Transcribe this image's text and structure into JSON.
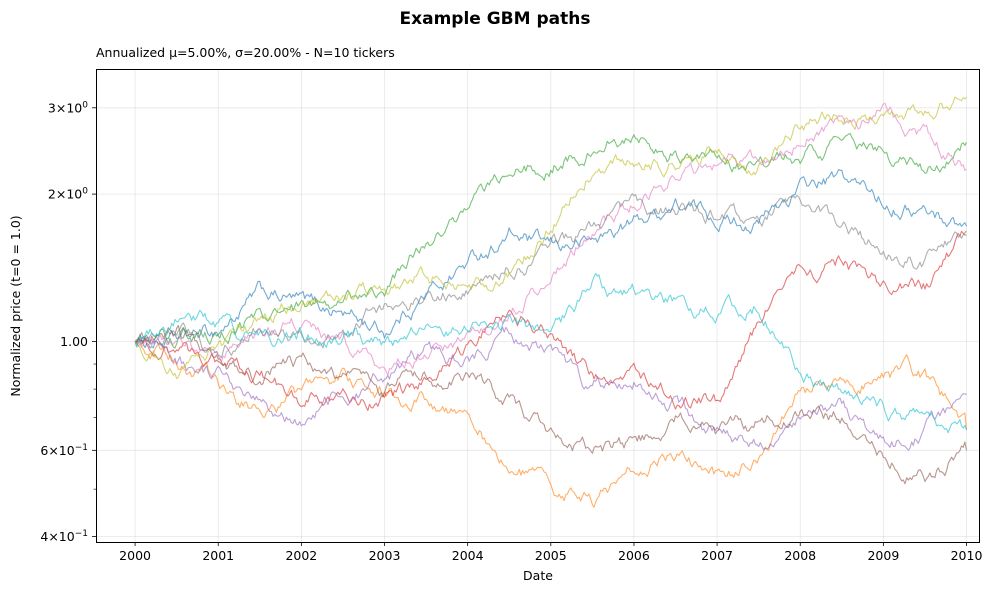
{
  "chart_data": {
    "type": "line",
    "title": "Example GBM paths",
    "subtitle": "Annualized μ=5.00%, σ=20.00%  -  N=10 tickers",
    "xlabel": "Date",
    "ylabel": "Normalized price (t=0 = 1.0)",
    "yscale": "log",
    "xlim": [
      1999.53,
      2010.15
    ],
    "ylim": [
      0.39,
      3.6
    ],
    "grid": true,
    "x_ticks": [
      {
        "value": 2000,
        "label": "2000"
      },
      {
        "value": 2001,
        "label": "2001"
      },
      {
        "value": 2002,
        "label": "2002"
      },
      {
        "value": 2003,
        "label": "2003"
      },
      {
        "value": 2004,
        "label": "2004"
      },
      {
        "value": 2005,
        "label": "2005"
      },
      {
        "value": 2006,
        "label": "2006"
      },
      {
        "value": 2007,
        "label": "2007"
      },
      {
        "value": 2008,
        "label": "2008"
      },
      {
        "value": 2009,
        "label": "2009"
      },
      {
        "value": 2010,
        "label": "2010"
      }
    ],
    "y_ticks": [
      {
        "value": 3.0,
        "base": "3",
        "exp": "0"
      },
      {
        "value": 2.0,
        "base": "2",
        "exp": "0"
      },
      {
        "value": 1.0,
        "text": "1.00"
      },
      {
        "value": 0.6,
        "base": "6",
        "exp": "−1"
      },
      {
        "value": 0.4,
        "base": "4",
        "exp": "−1"
      }
    ],
    "y_minor_ticks": [
      0.5,
      0.7,
      0.8,
      0.9
    ],
    "x": [
      2000.0,
      2000.5,
      2001.0,
      2001.5,
      2002.0,
      2002.5,
      2003.0,
      2003.5,
      2004.0,
      2004.5,
      2005.0,
      2005.5,
      2006.0,
      2006.5,
      2007.0,
      2007.5,
      2008.0,
      2008.5,
      2009.0,
      2009.5,
      2010.0
    ],
    "series": [
      {
        "color": "#1f77b4",
        "values": [
          1.0,
          1.0,
          1.05,
          1.25,
          1.2,
          1.15,
          1.05,
          1.25,
          1.45,
          1.65,
          1.55,
          1.6,
          1.75,
          1.9,
          1.8,
          1.75,
          2.05,
          2.15,
          1.95,
          1.85,
          1.72
        ]
      },
      {
        "color": "#ff7f0e",
        "values": [
          1.0,
          0.92,
          0.8,
          0.72,
          0.78,
          0.85,
          0.78,
          0.76,
          0.72,
          0.55,
          0.5,
          0.48,
          0.55,
          0.6,
          0.53,
          0.56,
          0.8,
          0.8,
          0.87,
          0.85,
          0.66
        ]
      },
      {
        "color": "#2ca02c",
        "values": [
          1.0,
          1.02,
          1.0,
          1.1,
          1.15,
          1.2,
          1.3,
          1.6,
          1.9,
          2.2,
          2.3,
          2.5,
          2.6,
          2.4,
          2.3,
          2.3,
          2.4,
          2.5,
          2.45,
          2.2,
          2.55
        ]
      },
      {
        "color": "#d62728",
        "values": [
          1.0,
          0.95,
          0.9,
          0.85,
          0.78,
          0.76,
          0.76,
          0.82,
          0.95,
          1.2,
          1.05,
          0.85,
          0.85,
          0.78,
          0.75,
          1.1,
          1.35,
          1.45,
          1.3,
          1.3,
          1.65
        ]
      },
      {
        "color": "#9467bd",
        "values": [
          1.0,
          0.9,
          0.85,
          0.75,
          0.7,
          0.78,
          0.85,
          0.95,
          0.9,
          1.05,
          0.95,
          0.8,
          0.85,
          0.75,
          0.65,
          0.6,
          0.7,
          0.75,
          0.62,
          0.66,
          0.78
        ]
      },
      {
        "color": "#8c564b",
        "values": [
          1.0,
          1.05,
          0.95,
          0.85,
          0.9,
          0.85,
          0.8,
          0.85,
          0.85,
          0.75,
          0.65,
          0.6,
          0.62,
          0.7,
          0.65,
          0.68,
          0.72,
          0.7,
          0.58,
          0.53,
          0.6
        ]
      },
      {
        "color": "#e377c2",
        "values": [
          1.0,
          0.98,
          0.95,
          1.05,
          1.1,
          1.0,
          0.9,
          0.95,
          1.0,
          1.1,
          1.4,
          1.7,
          1.9,
          2.2,
          2.3,
          2.3,
          2.6,
          2.8,
          2.95,
          2.6,
          2.25
        ]
      },
      {
        "color": "#7f7f7f",
        "values": [
          1.0,
          1.05,
          0.95,
          1.05,
          1.0,
          1.05,
          1.15,
          1.25,
          1.25,
          1.4,
          1.55,
          1.7,
          1.85,
          1.9,
          1.8,
          1.75,
          1.95,
          1.75,
          1.5,
          1.45,
          1.68
        ]
      },
      {
        "color": "#bcbd22",
        "values": [
          1.0,
          0.88,
          0.95,
          1.1,
          1.2,
          1.25,
          1.25,
          1.35,
          1.3,
          1.35,
          1.7,
          2.3,
          2.4,
          2.3,
          2.45,
          2.3,
          2.7,
          2.9,
          2.9,
          3.0,
          3.15
        ]
      },
      {
        "color": "#17becf",
        "values": [
          1.0,
          1.1,
          1.08,
          1.0,
          1.05,
          1.05,
          0.98,
          1.05,
          1.1,
          1.1,
          1.0,
          1.3,
          1.25,
          1.2,
          1.15,
          1.2,
          0.85,
          0.8,
          0.72,
          0.7,
          0.66
        ]
      }
    ]
  }
}
